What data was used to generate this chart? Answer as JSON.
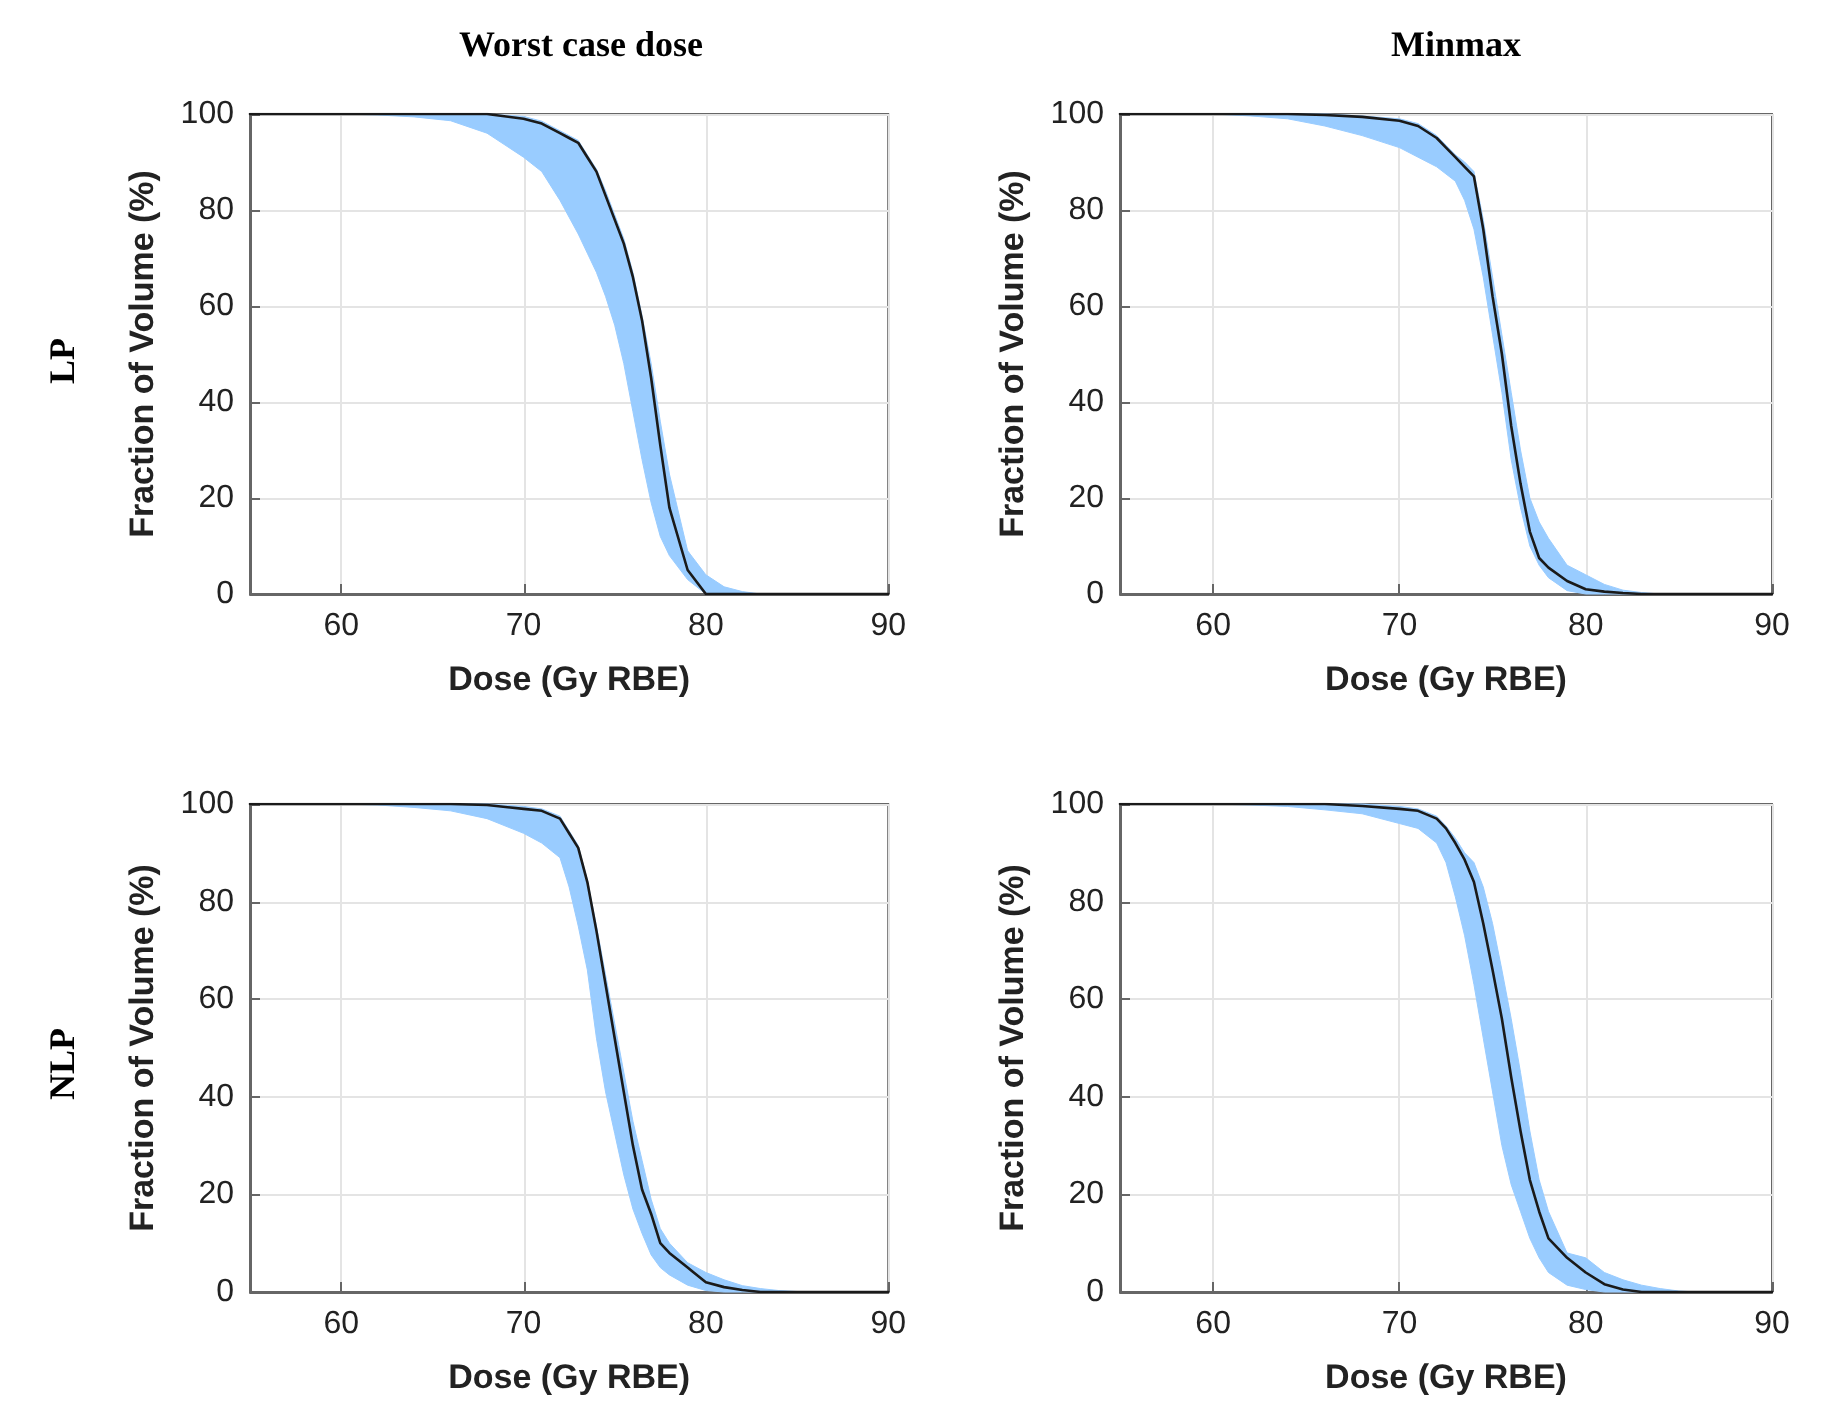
{
  "chart_data": [
    {
      "type": "line",
      "title": "Worst case dose",
      "annotations": [
        "LP"
      ],
      "xlabel": "Dose (Gy RBE)",
      "ylabel": "Fraction of Volume (%)",
      "xlim": [
        55,
        90
      ],
      "xticks": [
        60,
        70,
        80,
        90
      ],
      "ylim": [
        0,
        100
      ],
      "yticks": [
        0,
        20,
        40,
        60,
        80,
        100
      ],
      "grid": true,
      "marker": "none",
      "line_style": "solid",
      "x": [
        55,
        58,
        60,
        62,
        64,
        66,
        68,
        70,
        71,
        72,
        72.5,
        73,
        73.5,
        74,
        74.5,
        75,
        75.5,
        76,
        76.5,
        77,
        77.5,
        78,
        79,
        80,
        81,
        82,
        83,
        84,
        85,
        86,
        88,
        90
      ],
      "series": [
        {
          "color": "#1a1a1a",
          "values": [
            100,
            100,
            100,
            100,
            100,
            100,
            100,
            99,
            98,
            96,
            95,
            94,
            91,
            88,
            83,
            78,
            73,
            66,
            57,
            45,
            31,
            18,
            5,
            0,
            0,
            0,
            0,
            0,
            0,
            0,
            0,
            0
          ],
          "lower": [
            100,
            100,
            100,
            99.8,
            99.4,
            98.6,
            96,
            91,
            88,
            82,
            78.5,
            75,
            71,
            67,
            62,
            56,
            48,
            38,
            28,
            19,
            12,
            8,
            3,
            0,
            0,
            0,
            0,
            0,
            0,
            0,
            0,
            0
          ],
          "upper": [
            100,
            100,
            100,
            100,
            100,
            100,
            100,
            99.5,
            98.5,
            96.5,
            95.5,
            94.5,
            91.5,
            88.5,
            84,
            79,
            74,
            67,
            58,
            48,
            36,
            25,
            9,
            4,
            1.5,
            0.5,
            0,
            0,
            0,
            0,
            0,
            0
          ]
        }
      ]
    },
    {
      "type": "line",
      "title": "Minmax",
      "xlabel": "Dose (Gy RBE)",
      "ylabel": "Fraction of Volume (%)",
      "xlim": [
        55,
        90
      ],
      "xticks": [
        60,
        70,
        80,
        90
      ],
      "ylim": [
        0,
        100
      ],
      "yticks": [
        0,
        20,
        40,
        60,
        80,
        100
      ],
      "grid": true,
      "marker": "none",
      "line_style": "solid",
      "x": [
        55,
        58,
        60,
        62,
        64,
        66,
        68,
        70,
        71,
        72,
        72.5,
        73,
        73.5,
        74,
        74.5,
        75,
        75.5,
        76,
        76.5,
        77,
        77.5,
        78,
        79,
        80,
        81,
        82,
        83,
        84,
        85,
        86,
        88,
        90
      ],
      "series": [
        {
          "color": "#1a1a1a",
          "values": [
            100,
            100,
            100,
            100,
            100,
            99.8,
            99.4,
            98.6,
            97.5,
            95,
            93,
            91,
            89,
            87,
            76,
            62,
            50,
            35,
            23,
            13,
            7.5,
            5.5,
            2.7,
            1,
            0.5,
            0.2,
            0,
            0,
            0,
            0,
            0,
            0
          ],
          "lower": [
            100,
            100,
            100,
            99.6,
            99,
            97.5,
            95.5,
            93,
            91,
            89,
            87.5,
            86,
            82,
            76,
            66,
            54,
            42,
            28,
            18,
            10,
            6,
            3.4,
            0.7,
            0,
            0,
            0,
            0,
            0,
            0,
            0,
            0,
            0
          ],
          "upper": [
            100,
            100,
            100,
            100,
            100,
            100,
            99.6,
            99,
            98,
            95.5,
            93.5,
            91.5,
            90,
            88,
            78,
            66,
            54,
            42,
            30,
            20,
            15,
            11.6,
            6,
            4,
            2,
            0.8,
            0.3,
            0,
            0,
            0,
            0,
            0
          ]
        }
      ]
    },
    {
      "type": "line",
      "annotations": [
        "NLP"
      ],
      "xlabel": "Dose (Gy RBE)",
      "ylabel": "Fraction of Volume (%)",
      "xlim": [
        55,
        90
      ],
      "xticks": [
        60,
        70,
        80,
        90
      ],
      "ylim": [
        0,
        100
      ],
      "yticks": [
        0,
        20,
        40,
        60,
        80,
        100
      ],
      "grid": true,
      "marker": "none",
      "line_style": "solid",
      "x": [
        55,
        58,
        60,
        62,
        64,
        66,
        68,
        70,
        71,
        72,
        72.5,
        73,
        73.5,
        74,
        74.5,
        75,
        75.5,
        76,
        76.5,
        77,
        77.5,
        78,
        79,
        80,
        81,
        82,
        83,
        84,
        85,
        86,
        88,
        90
      ],
      "series": [
        {
          "color": "#1a1a1a",
          "values": [
            100,
            100,
            100,
            100,
            100,
            100,
            99.8,
            99,
            98.6,
            97,
            94,
            91,
            84,
            74,
            63,
            52,
            41,
            30,
            21,
            16,
            10,
            8,
            5,
            2,
            1,
            0.4,
            0,
            0,
            0,
            0,
            0,
            0
          ],
          "lower": [
            100,
            100,
            100,
            99.8,
            99.3,
            98.6,
            97,
            94,
            92,
            89,
            83,
            75,
            66,
            52,
            41,
            32.5,
            24,
            17,
            12,
            7.6,
            5,
            3.5,
            1.4,
            0.3,
            0,
            0,
            0,
            0,
            0,
            0,
            0,
            0
          ],
          "upper": [
            100,
            100,
            100,
            100,
            100,
            100,
            100,
            99.5,
            99,
            97.5,
            94.5,
            91.5,
            84.5,
            75,
            65,
            55,
            45,
            35,
            27,
            19,
            13,
            10,
            6,
            4,
            2.5,
            1.3,
            0.7,
            0.3,
            0.1,
            0,
            0,
            0
          ]
        }
      ]
    },
    {
      "type": "line",
      "xlabel": "Dose (Gy RBE)",
      "ylabel": "Fraction of Volume (%)",
      "xlim": [
        55,
        90
      ],
      "xticks": [
        60,
        70,
        80,
        90
      ],
      "ylim": [
        0,
        100
      ],
      "yticks": [
        0,
        20,
        40,
        60,
        80,
        100
      ],
      "grid": true,
      "marker": "none",
      "line_style": "solid",
      "x": [
        55,
        58,
        60,
        62,
        64,
        66,
        68,
        70,
        71,
        72,
        72.5,
        73,
        73.5,
        74,
        74.5,
        75,
        75.5,
        76,
        76.5,
        77,
        77.5,
        78,
        79,
        80,
        81,
        82,
        83,
        84,
        85,
        86,
        88,
        90
      ],
      "series": [
        {
          "color": "#1a1a1a",
          "values": [
            100,
            100,
            100,
            100,
            100,
            100,
            99.6,
            99,
            98.6,
            97,
            95,
            92,
            88.6,
            84,
            75.5,
            66,
            56,
            44,
            33,
            23,
            16.5,
            11,
            7,
            4,
            1.6,
            0.5,
            0,
            0,
            0,
            0,
            0,
            0
          ],
          "lower": [
            100,
            100,
            100,
            99.8,
            99.5,
            98.8,
            98,
            96,
            95,
            92,
            88,
            81,
            73,
            63,
            52,
            41,
            30,
            22,
            16.5,
            11,
            7,
            4,
            1.4,
            0.5,
            0,
            0,
            0,
            0,
            0,
            0,
            0,
            0
          ],
          "upper": [
            100,
            100,
            100,
            100,
            100,
            100,
            100,
            99.5,
            99,
            97.5,
            95.5,
            93,
            90,
            88,
            83,
            75.5,
            66,
            56,
            45,
            33,
            23,
            16.5,
            8,
            7,
            4,
            2.5,
            1.4,
            0.7,
            0.2,
            0,
            0,
            0
          ]
        }
      ]
    }
  ]
}
